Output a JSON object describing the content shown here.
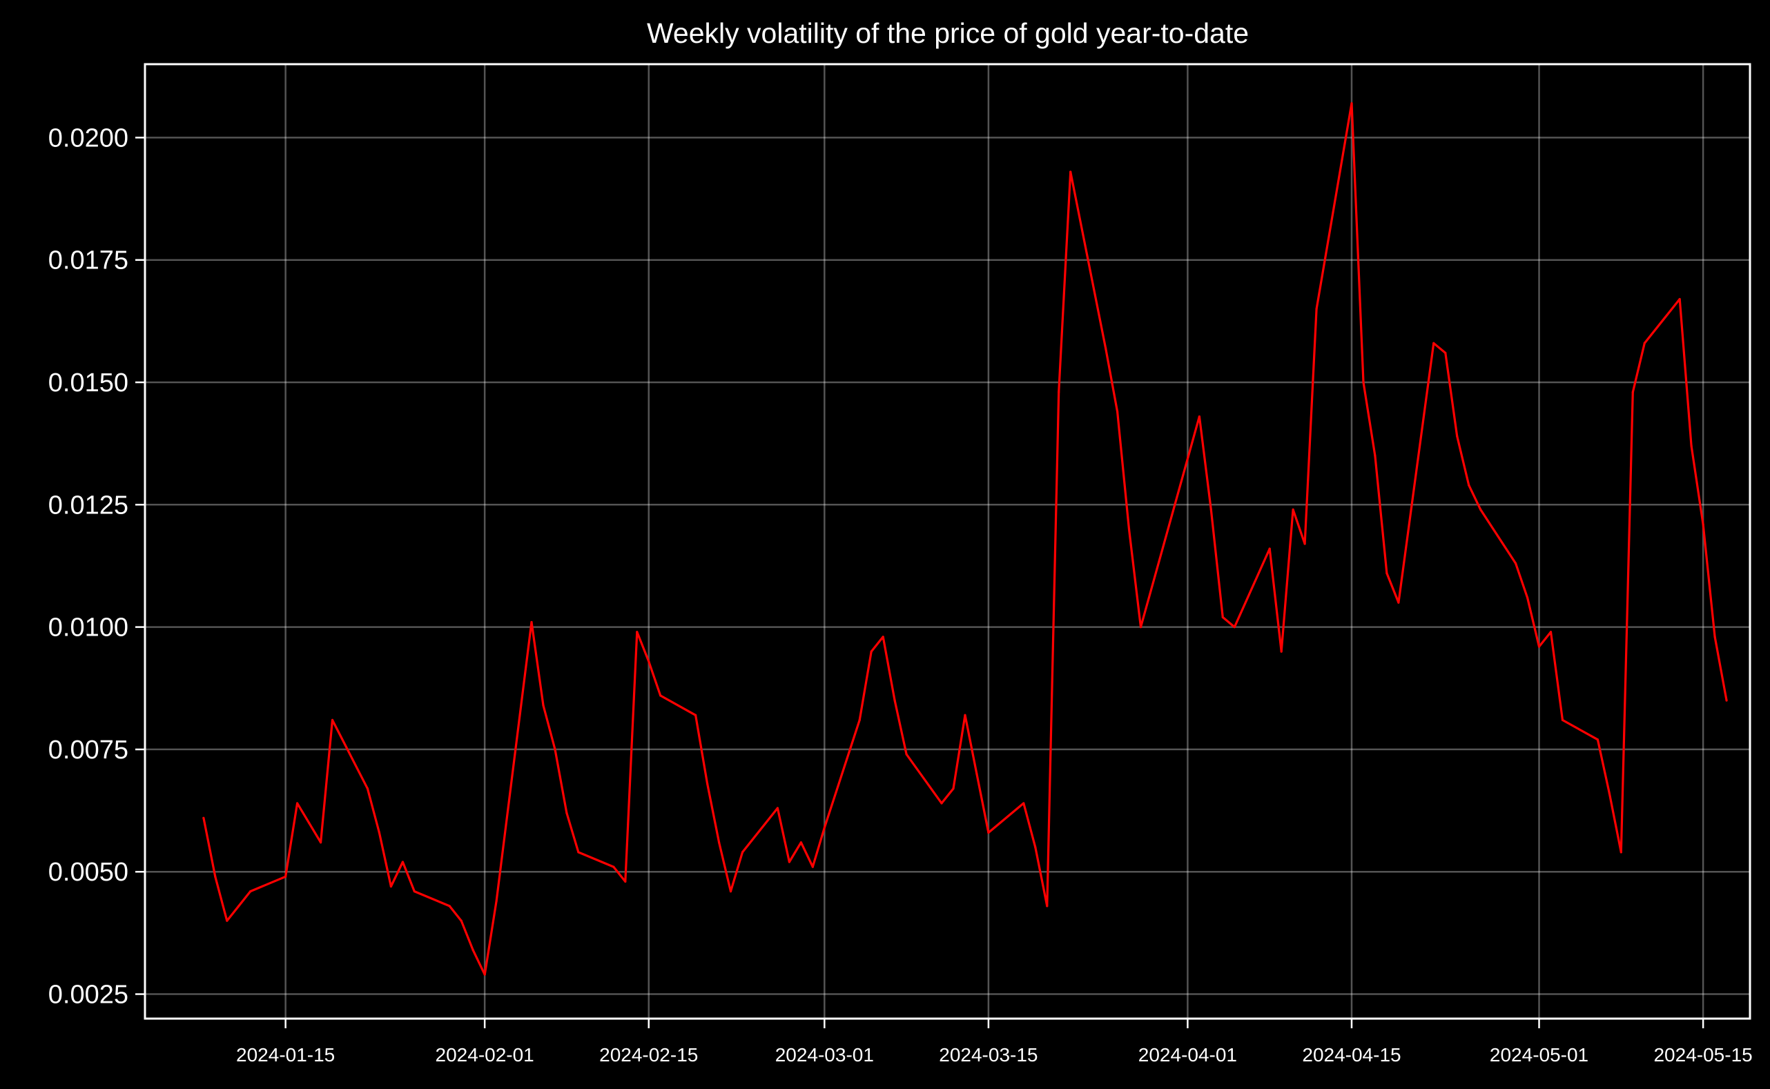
{
  "chart_data": {
    "type": "line",
    "title": "Weekly volatility of the price of gold year-to-date",
    "xlabel": "",
    "ylabel": "",
    "grid": true,
    "line_color": "#ff0000",
    "background_color": "#000000",
    "foreground_color": "#ffffff",
    "xlim": [
      "2024-01-03",
      "2024-05-19"
    ],
    "ylim": [
      0.002,
      0.0215
    ],
    "x_ticks": [
      "2024-01-15",
      "2024-02-01",
      "2024-02-15",
      "2024-03-01",
      "2024-03-15",
      "2024-04-01",
      "2024-04-15",
      "2024-05-01",
      "2024-05-15"
    ],
    "y_ticks": [
      "0.0025",
      "0.0050",
      "0.0075",
      "0.0100",
      "0.0125",
      "0.0150",
      "0.0175",
      "0.0200"
    ],
    "series": [
      {
        "name": "",
        "x": [
          "2024-01-08",
          "2024-01-09",
          "2024-01-10",
          "2024-01-11",
          "2024-01-12",
          "2024-01-15",
          "2024-01-16",
          "2024-01-17",
          "2024-01-18",
          "2024-01-19",
          "2024-01-22",
          "2024-01-23",
          "2024-01-24",
          "2024-01-25",
          "2024-01-26",
          "2024-01-29",
          "2024-01-30",
          "2024-01-31",
          "2024-02-01",
          "2024-02-02",
          "2024-02-05",
          "2024-02-06",
          "2024-02-07",
          "2024-02-08",
          "2024-02-09",
          "2024-02-12",
          "2024-02-13",
          "2024-02-14",
          "2024-02-15",
          "2024-02-16",
          "2024-02-19",
          "2024-02-20",
          "2024-02-21",
          "2024-02-22",
          "2024-02-23",
          "2024-02-26",
          "2024-02-27",
          "2024-02-28",
          "2024-02-29",
          "2024-03-01",
          "2024-03-04",
          "2024-03-05",
          "2024-03-06",
          "2024-03-07",
          "2024-03-08",
          "2024-03-11",
          "2024-03-12",
          "2024-03-13",
          "2024-03-14",
          "2024-03-15",
          "2024-03-18",
          "2024-03-19",
          "2024-03-20",
          "2024-03-21",
          "2024-03-22",
          "2024-03-25",
          "2024-03-26",
          "2024-03-27",
          "2024-03-28",
          "2024-04-02",
          "2024-04-03",
          "2024-04-04",
          "2024-04-05",
          "2024-04-08",
          "2024-04-09",
          "2024-04-10",
          "2024-04-11",
          "2024-04-12",
          "2024-04-15",
          "2024-04-16",
          "2024-04-17",
          "2024-04-18",
          "2024-04-19",
          "2024-04-22",
          "2024-04-23",
          "2024-04-24",
          "2024-04-25",
          "2024-04-26",
          "2024-04-29",
          "2024-04-30",
          "2024-05-01",
          "2024-05-02",
          "2024-05-03",
          "2024-05-06",
          "2024-05-07",
          "2024-05-08",
          "2024-05-09",
          "2024-05-10",
          "2024-05-13",
          "2024-05-14",
          "2024-05-15",
          "2024-05-16",
          "2024-05-17"
        ],
        "y": [
          0.0061,
          0.0049,
          0.004,
          0.0043,
          0.0046,
          0.0049,
          0.0064,
          0.006,
          0.0056,
          0.0081,
          0.0067,
          0.0058,
          0.0047,
          0.0052,
          0.0046,
          0.0043,
          0.004,
          0.0034,
          0.0029,
          0.0044,
          0.0101,
          0.0084,
          0.0075,
          0.0062,
          0.0054,
          0.0051,
          0.0048,
          0.0099,
          0.0093,
          0.0086,
          0.0082,
          0.0068,
          0.0056,
          0.0046,
          0.0054,
          0.0063,
          0.0052,
          0.0056,
          0.0051,
          0.0059,
          0.0081,
          0.0095,
          0.0098,
          0.0085,
          0.0074,
          0.0064,
          0.0067,
          0.0082,
          0.007,
          0.0058,
          0.0064,
          0.0055,
          0.0043,
          0.0148,
          0.0193,
          0.0157,
          0.0144,
          0.012,
          0.01,
          0.0143,
          0.0124,
          0.0102,
          0.01,
          0.0116,
          0.0095,
          0.0124,
          0.0117,
          0.0165,
          0.0207,
          0.015,
          0.0135,
          0.0111,
          0.0105,
          0.0158,
          0.0156,
          0.0139,
          0.0129,
          0.0124,
          0.0113,
          0.0106,
          0.0096,
          0.0099,
          0.0081,
          0.0077,
          0.0066,
          0.0054,
          0.0148,
          0.0158,
          0.0167,
          0.0137,
          0.0121,
          0.0098,
          0.0085
        ]
      }
    ]
  }
}
